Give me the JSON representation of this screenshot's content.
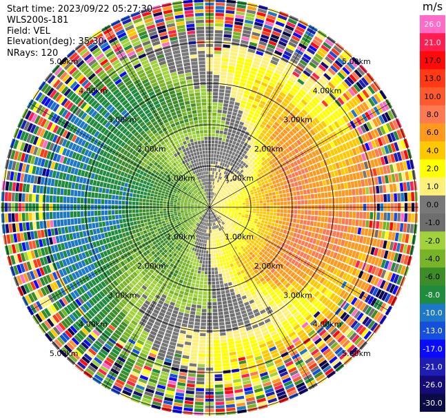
{
  "info": {
    "start_time": "Start time: 2023/09/22 05:27:30",
    "instrument": "WLS200s-181",
    "field": "Field: VEL",
    "elevation": "Elevation(deg): 35.30",
    "nrays": "NRays: 120"
  },
  "colorbar": {
    "title": "m/s",
    "ticks": [
      "26.0",
      "21.0",
      "17.0",
      "13.0",
      "10.0",
      "8.0",
      "6.0",
      "4.0",
      "2.0",
      "1.0",
      "0.0",
      "-1.0",
      "-2.0",
      "-4.0",
      "-6.0",
      "-8.0",
      "-10.0",
      "-13.0",
      "-17.0",
      "-21.0",
      "-26.0",
      "-30.0"
    ],
    "colors": [
      "#ff6cc8",
      "#ff1e50",
      "#ff0a0a",
      "#ff3a14",
      "#ff5a2e",
      "#ff7a50",
      "#ff9a1e",
      "#ffc800",
      "#ffff00",
      "#fff07a",
      "#787878",
      "#6e6e6e",
      "#a0d23c",
      "#78b428",
      "#3c8c28",
      "#1e8c3c",
      "#1e78c8",
      "#1450dc",
      "#0a0aff",
      "#1e1eb4",
      "#140a78",
      "#0a0a46"
    ]
  },
  "chart_data": {
    "type": "heatmap",
    "projection": "polar-ppi",
    "field": "VEL",
    "units": "m/s",
    "nrays": 120,
    "range_rings_km": [
      1.0,
      2.0,
      3.0,
      4.0,
      5.0
    ],
    "range_ring_labels": [
      "1.00km",
      "2.00km",
      "3.00km",
      "4.00km",
      "5.00km"
    ],
    "max_range_km": 5.05,
    "vmin": -30.0,
    "vmax": 30.0,
    "velocity_model": {
      "description": "radial velocity dipole; positive to the east, negative to the west",
      "peak_speed": 14.0,
      "direction_deg": 95,
      "noise_onset_km": 3.6
    }
  }
}
